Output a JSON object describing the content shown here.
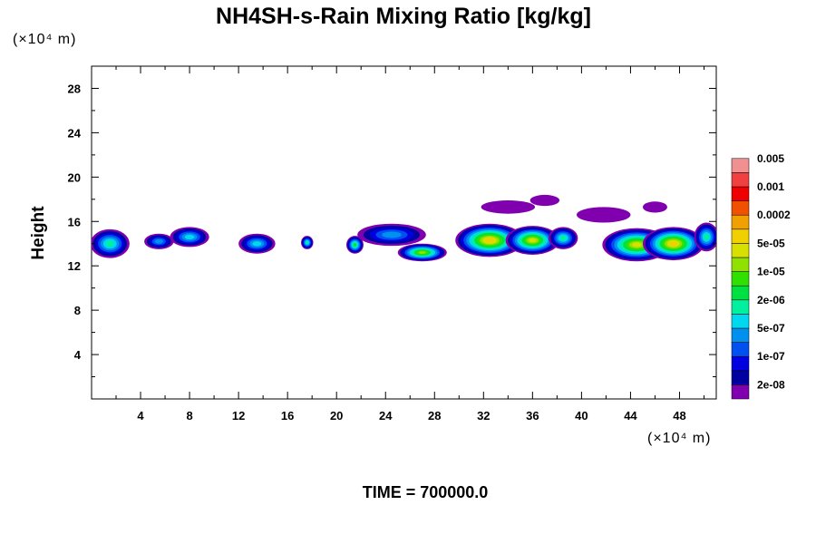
{
  "chart_data": {
    "type": "heatmap",
    "title": "NH4SH-s-Rain Mixing Ratio [kg/kg]",
    "ylabel": "Height",
    "xlabel": "",
    "x_unit": "(×10⁴ m)",
    "y_unit": "(×10⁴ m)",
    "time_label": "TIME = 700000.0",
    "xlim": [
      0,
      51
    ],
    "ylim": [
      0,
      30
    ],
    "x_ticks": [
      "4",
      "8",
      "12",
      "16",
      "20",
      "24",
      "28",
      "32",
      "36",
      "40",
      "44",
      "48"
    ],
    "y_ticks": [
      "4",
      "8",
      "12",
      "16",
      "20",
      "24",
      "28"
    ],
    "colorbar": {
      "colors": [
        "#8000b0",
        "#0000a0",
        "#0000e0",
        "#0050f0",
        "#0090f0",
        "#00d8f0",
        "#00f0a0",
        "#00e040",
        "#30e000",
        "#90e000",
        "#d8e000",
        "#f0d000",
        "#f0a000",
        "#f05000",
        "#f00000",
        "#f04040",
        "#f09090"
      ],
      "labels": [
        "2e-08",
        "1e-07",
        "5e-07",
        "2e-06",
        "1e-05",
        "5e-05",
        "0.0002",
        "0.001",
        "0.005"
      ]
    },
    "blobs": [
      {
        "x": 1.5,
        "y": 14.0,
        "rx": 1.6,
        "ry": 1.3,
        "level": 6
      },
      {
        "x": 5.5,
        "y": 14.2,
        "rx": 1.2,
        "ry": 0.7,
        "level": 4
      },
      {
        "x": 8.0,
        "y": 14.6,
        "rx": 1.6,
        "ry": 0.9,
        "level": 5
      },
      {
        "x": 13.5,
        "y": 14.0,
        "rx": 1.5,
        "ry": 0.9,
        "level": 5
      },
      {
        "x": 17.6,
        "y": 14.1,
        "rx": 0.5,
        "ry": 0.6,
        "level": 6
      },
      {
        "x": 21.5,
        "y": 13.9,
        "rx": 0.7,
        "ry": 0.8,
        "level": 7
      },
      {
        "x": 24.5,
        "y": 14.8,
        "rx": 2.8,
        "ry": 1.0,
        "level": 4
      },
      {
        "x": 27.0,
        "y": 13.2,
        "rx": 2.0,
        "ry": 0.8,
        "level": 9
      },
      {
        "x": 32.5,
        "y": 14.3,
        "rx": 2.8,
        "ry": 1.5,
        "level": 11
      },
      {
        "x": 36.0,
        "y": 14.3,
        "rx": 2.2,
        "ry": 1.3,
        "level": 10
      },
      {
        "x": 38.5,
        "y": 14.5,
        "rx": 1.2,
        "ry": 1.0,
        "level": 6
      },
      {
        "x": 44.5,
        "y": 13.9,
        "rx": 2.8,
        "ry": 1.5,
        "level": 10
      },
      {
        "x": 47.5,
        "y": 14.0,
        "rx": 2.5,
        "ry": 1.5,
        "level": 11
      },
      {
        "x": 50.2,
        "y": 14.6,
        "rx": 1.0,
        "ry": 1.3,
        "level": 6
      },
      {
        "x": 34.0,
        "y": 17.3,
        "rx": 2.2,
        "ry": 0.6,
        "level": 0
      },
      {
        "x": 37.0,
        "y": 17.9,
        "rx": 1.2,
        "ry": 0.5,
        "level": 0
      },
      {
        "x": 41.8,
        "y": 16.6,
        "rx": 2.2,
        "ry": 0.7,
        "level": 0
      },
      {
        "x": 46.0,
        "y": 17.3,
        "rx": 1.0,
        "ry": 0.5,
        "level": 0
      }
    ]
  }
}
